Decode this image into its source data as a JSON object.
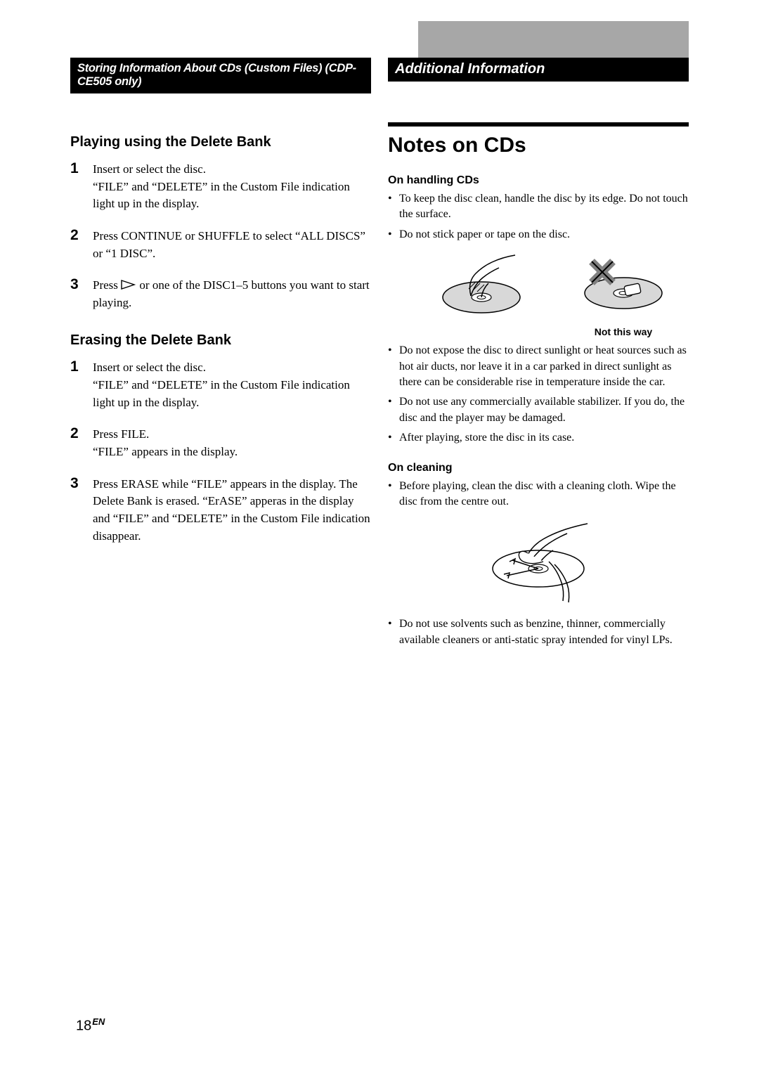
{
  "left": {
    "header": "Storing Information About CDs (Custom Files) (CDP-CE505 only)",
    "section1": {
      "title": "Playing using the Delete Bank",
      "steps": [
        "Insert or select the disc.\n“FILE” and “DELETE” in the Custom File indication light up in the display.",
        "Press CONTINUE or SHUFFLE to select “ALL DISCS” or “1 DISC”.",
        "Press      or one of the DISC1–5 buttons you want to start playing."
      ]
    },
    "section2": {
      "title": "Erasing the Delete Bank",
      "steps": [
        "Insert or select the disc.\n “FILE” and “DELETE” in the Custom File indication light up in the display.",
        "Press FILE.\n“FILE” appears in the display.",
        "Press ERASE while “FILE” appears in the display. The Delete Bank is erased. “ErASE” apperas in the display and “FILE” and “DELETE” in the Custom File indication disappear."
      ]
    }
  },
  "right": {
    "header": "Additional Information",
    "title": "Notes on CDs",
    "handling": {
      "head": "On handling CDs",
      "bullets1": [
        "To keep the disc clean, handle the disc by its edge. Do not touch the surface.",
        "Do not stick paper or tape on the disc."
      ],
      "caption": "Not this way",
      "bullets2": [
        "Do not expose the disc to direct sunlight or heat sources such as hot air ducts, nor leave it in a car parked in direct sunlight as there can be considerable rise in temperature inside the car.",
        "Do not use any commercially available stabilizer. If you do, the disc and the player may be damaged.",
        "After playing, store the disc in its case."
      ]
    },
    "cleaning": {
      "head": "On cleaning",
      "bullets1": [
        "Before playing, clean the disc with a cleaning cloth. Wipe the disc from the centre out."
      ],
      "bullets2": [
        "Do not use solvents such as benzine, thinner, commercially available cleaners or anti-static spray intended for vinyl LPs."
      ]
    }
  },
  "page": {
    "num": "18",
    "lang": "EN"
  },
  "colors": {
    "gray": "#a7a7a7",
    "disc_fill": "#d8d8d8",
    "x_gray": "#808080"
  }
}
